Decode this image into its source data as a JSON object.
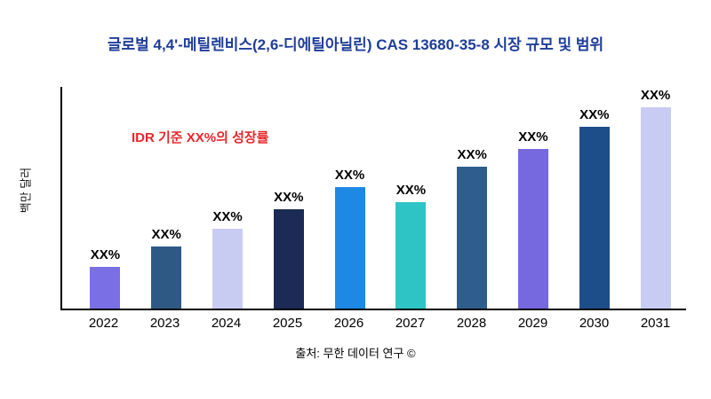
{
  "title": "글로벌 4,4'-메틸렌비스(2,6-디에틸아닐린) CAS 13680-35-8 시장 규모 및 범위",
  "annotation": "IDR 기준 XX%의 성장률",
  "y_axis_label": "백만 달러",
  "source": "출처: 무한 데이터 연구 ©",
  "colors": {
    "title": "#1F3D99",
    "annotation": "#E8262B",
    "axis": "#000000",
    "background": "#ffffff"
  },
  "chart_data": {
    "type": "bar",
    "title": "글로벌 4,4'-메틸렌비스(2,6-디에틸아닐린) CAS 13680-35-8 시장 규모 및 범위",
    "categories": [
      "2022",
      "2023",
      "2024",
      "2025",
      "2026",
      "2027",
      "2028",
      "2029",
      "2030",
      "2031"
    ],
    "values": [
      19,
      28,
      36,
      45,
      55,
      48,
      64,
      72,
      82,
      91
    ],
    "bar_labels": [
      "XX%",
      "XX%",
      "XX%",
      "XX%",
      "XX%",
      "XX%",
      "XX%",
      "XX%",
      "XX%",
      "XX%"
    ],
    "bar_colors": [
      "#7B6FE6",
      "#2E5984",
      "#C9CCF2",
      "#1B2B55",
      "#1E88E5",
      "#2EC4C6",
      "#2F5E8C",
      "#7668DE",
      "#1D4E89",
      "#C9CCF2"
    ],
    "xlabel": "",
    "ylabel": "백만 달러",
    "ylim": [
      0,
      100
    ],
    "grid": false,
    "legend": "none",
    "annotations": [
      "IDR 기준 XX%의 성장률"
    ]
  }
}
